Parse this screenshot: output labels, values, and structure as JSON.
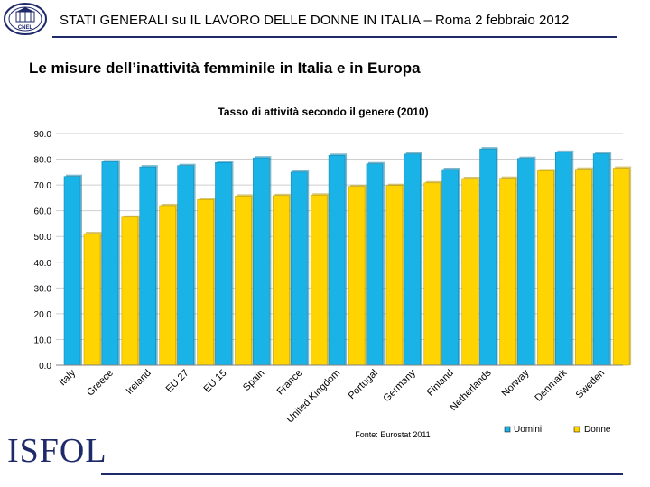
{
  "header": {
    "title": "STATI GENERALI su IL LAVORO DELLE DONNE IN ITALIA – Roma 2 febbraio 2012",
    "seal_text": "CNEL"
  },
  "subtitle": "Le misure dell’inattività femminile in Italia e in Europa",
  "footer": {
    "logo_text": "ISFOL"
  },
  "colors": {
    "uomini": "#1ab3e8",
    "donne": "#ffd400",
    "rule": "#1f2a6b"
  },
  "chart_data": {
    "type": "bar",
    "title": "Tasso di attività secondo il genere (2010)",
    "source": "Fonte: Eurostat 2011",
    "categories": [
      "Italy",
      "Greece",
      "Ireland",
      "EU 27",
      "EU 15",
      "Spain",
      "France",
      "United Kingdom",
      "Portugal",
      "Germany",
      "Finland",
      "Netherlands",
      "Norway",
      "Denmark",
      "Sweden"
    ],
    "series": [
      {
        "name": "Uomini",
        "values": [
          73.3,
          79.0,
          77.0,
          77.5,
          78.7,
          80.5,
          75.0,
          81.5,
          78.2,
          82.0,
          76.0,
          84.0,
          80.3,
          82.7,
          82.1
        ]
      },
      {
        "name": "Donne",
        "values": [
          51.1,
          57.5,
          62.0,
          64.3,
          65.7,
          65.9,
          66.1,
          69.4,
          69.8,
          70.8,
          72.5,
          72.6,
          75.5,
          76.1,
          76.5
        ]
      }
    ],
    "yticks": [
      "90.0",
      "80.0",
      "70.0",
      "60.0",
      "50.0",
      "40.0",
      "30.0",
      "20.0",
      "10.0",
      "0.0"
    ],
    "ylim": [
      0,
      90
    ],
    "xlabel": "",
    "ylabel": "",
    "legend_position": "bottom-right"
  }
}
